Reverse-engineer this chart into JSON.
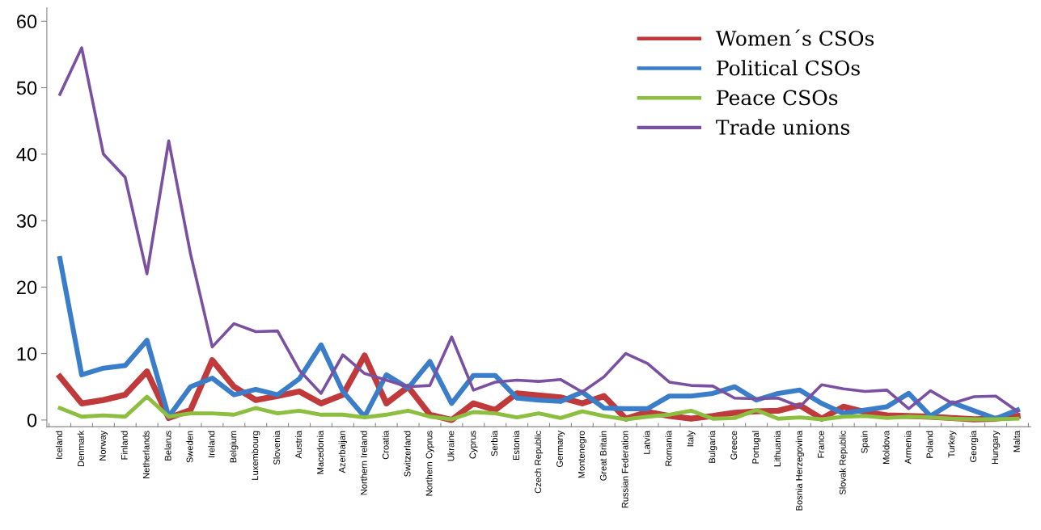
{
  "chart_data": {
    "type": "line",
    "categories": [
      "Iceland",
      "Denmark",
      "Norway",
      "Finland",
      "Netherlands",
      "Belarus",
      "Sweden",
      "Ireland",
      "Belgium",
      "Luxembourg",
      "Slovenia",
      "Austria",
      "Macedonia",
      "Azerbaijan",
      "Northern Ireland",
      "Croatia",
      "Switzerland",
      "Northern Cyprus",
      "Ukraine",
      "Cyprus",
      "Serbia",
      "Estonia",
      "Czech Republic",
      "Germany",
      "Montenegro",
      "Great Britain",
      "Russian Federation",
      "Latvia",
      "Romania",
      "Italy",
      "Bulgaria",
      "Greece",
      "Portugal",
      "Lithuania",
      "Bosnia Herzegovina",
      "France",
      "Slovak Republic",
      "Spain",
      "Moldova",
      "Armenia",
      "Poland",
      "Turkey",
      "Georgia",
      "Hungary",
      "Malta"
    ],
    "series": [
      {
        "name": "Women´s CSOs",
        "color": "#c0393b",
        "values": [
          6.5,
          2.5,
          3,
          3.8,
          7.3,
          0.3,
          1.5,
          9,
          5,
          3,
          3.6,
          4.3,
          2.5,
          3.8,
          9.7,
          2.5,
          5,
          0.8,
          0,
          2.5,
          1.5,
          4,
          3.7,
          3.4,
          2.5,
          3.6,
          0.2,
          1.2,
          0.6,
          0.2,
          0.6,
          1.1,
          1.3,
          1.4,
          2.2,
          0.2,
          2,
          1.2,
          0.7,
          0.6,
          0.5,
          0.3,
          0.1,
          0.2,
          0.6
        ]
      },
      {
        "name": "Political CSOs",
        "color": "#3a7dc9",
        "values": [
          24.3,
          6.8,
          7.8,
          8.2,
          12,
          0.5,
          5,
          6.3,
          3.8,
          4.6,
          3.8,
          6.2,
          11.3,
          4.3,
          0.5,
          6.8,
          4.8,
          8.8,
          2.5,
          6.7,
          6.7,
          3.3,
          3,
          2.8,
          4.2,
          1.8,
          1.7,
          1.7,
          3.6,
          3.6,
          4,
          5,
          3,
          4,
          4.5,
          2.5,
          1,
          1.5,
          2,
          4,
          0.6,
          2.6,
          1.4,
          0.2,
          1.5
        ]
      },
      {
        "name": "Peace CSOs",
        "color": "#8cbf3f",
        "values": [
          1.8,
          0.5,
          0.7,
          0.5,
          3.5,
          0.5,
          1,
          1,
          0.8,
          1.8,
          1,
          1.4,
          0.8,
          0.8,
          0.4,
          0.8,
          1.4,
          0.5,
          0.1,
          1.2,
          1,
          0.4,
          1,
          0.3,
          1.3,
          0.6,
          0.1,
          0.5,
          0.8,
          1.4,
          0.2,
          0.3,
          1.5,
          0.2,
          0.4,
          0.1,
          0.5,
          0.6,
          0.3,
          0.5,
          0.4,
          0.2,
          0.1,
          0.1,
          0.2
        ]
      },
      {
        "name": "Trade unions",
        "color": "#7a50a0",
        "values": [
          49,
          56,
          40,
          36.5,
          22,
          42,
          25,
          11,
          14.5,
          13.3,
          13.4,
          7.5,
          4,
          9.8,
          7,
          6,
          5,
          5.2,
          12.5,
          4.5,
          5.7,
          6,
          5.8,
          6.1,
          4.2,
          6.5,
          10,
          8.5,
          5.7,
          5.2,
          5.1,
          3.3,
          3.2,
          3.3,
          2,
          5.3,
          4.7,
          4.3,
          4.5,
          1.7,
          4.4,
          2.5,
          3.5,
          3.6,
          1.3
        ]
      }
    ],
    "ylim": [
      -1,
      62
    ],
    "yticks": [
      0,
      10,
      20,
      30,
      40,
      50,
      60
    ],
    "legend": "top right",
    "grid": false,
    "marker": "none",
    "line_style": "solid"
  }
}
